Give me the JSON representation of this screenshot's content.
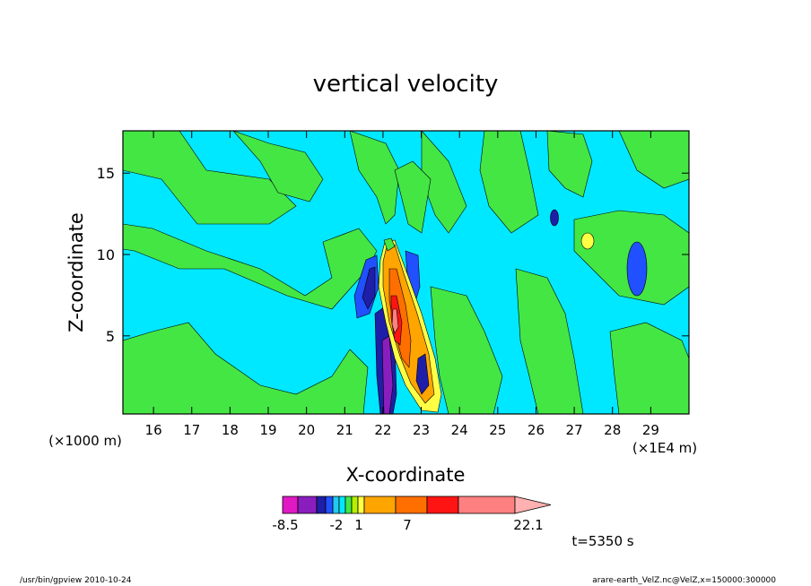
{
  "chart_data": {
    "type": "heatmap",
    "title": "vertical velocity",
    "xlabel": "X-coordinate",
    "ylabel": "Z-coordinate",
    "x_unit_label": "(×1E4 m)",
    "y_unit_label": "(×1000 m)",
    "xlim": [
      15.2,
      30.0
    ],
    "ylim": [
      0.2,
      17.6
    ],
    "x_ticks": [
      "16",
      "17",
      "18",
      "19",
      "20",
      "21",
      "22",
      "23",
      "24",
      "25",
      "26",
      "27",
      "28",
      "29"
    ],
    "y_ticks": [
      "5",
      "10",
      "15"
    ],
    "grid": false,
    "colorbar": {
      "colors": [
        "#e019c4",
        "#8a1dbd",
        "#1e1ea8",
        "#2050ff",
        "#22c8f0",
        "#00e8ff",
        "#44e644",
        "#b4f000",
        "#ffff44",
        "#ffa500",
        "#ff6f00",
        "#ff1414",
        "#ff8080",
        "#ffb0b0"
      ],
      "tick_labels": [
        "-8.5",
        "-2",
        "1",
        "7",
        "22.1"
      ],
      "levels_shown": [
        -8.5,
        -2,
        1,
        7,
        22.1
      ]
    },
    "time_label": "t=5350 s",
    "field_notes": [
      {
        "x": 22.1,
        "z": 6.0,
        "value_range": [
          7,
          22.1
        ],
        "desc": "strong updraft core"
      },
      {
        "x": 21.7,
        "z": 2.5,
        "value_range": [
          -8.5,
          -2
        ],
        "desc": "downdraft"
      },
      {
        "x": 28.5,
        "z": 8.8,
        "value_range": [
          -2,
          0
        ],
        "desc": "weak downdraft"
      },
      {
        "x": 27.3,
        "z": 10.9,
        "value_range": [
          1,
          7
        ],
        "desc": "weak updraft"
      }
    ]
  },
  "footer": {
    "left": "/usr/bin/gpview   2010-10-24",
    "right": "arare-earth_VelZ.nc@VelZ,x=150000:300000"
  }
}
